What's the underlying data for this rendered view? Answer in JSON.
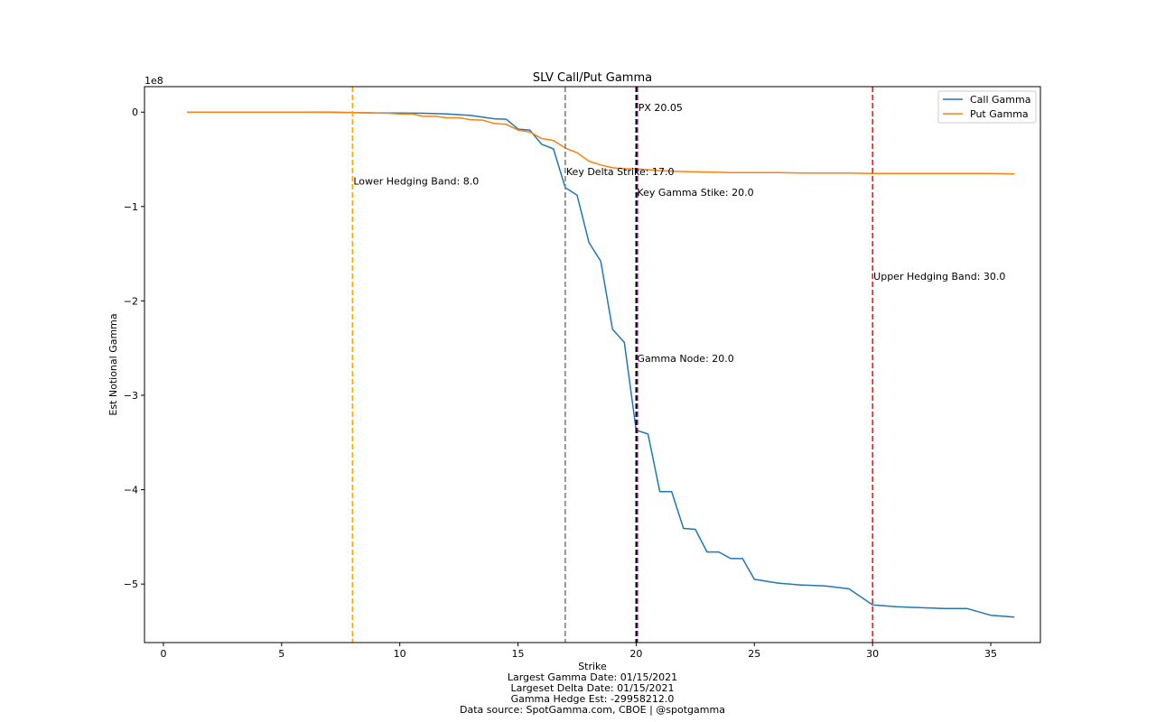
{
  "chart_data": {
    "type": "line",
    "title": "SLV Call/Put Gamma",
    "xlabel": "Strike",
    "ylabel": "Est Notional Gamma",
    "y_offset_label": "1e8",
    "xlim": [
      -0.8,
      37.1
    ],
    "ylim": [
      -5.62,
      0.27
    ],
    "x_ticks": [
      0,
      5,
      10,
      15,
      20,
      25,
      30,
      35
    ],
    "x_tick_labels": [
      "0",
      "5",
      "10",
      "15",
      "20",
      "25",
      "30",
      "35"
    ],
    "y_ticks": [
      0,
      -1,
      -2,
      -3,
      -4,
      -5
    ],
    "y_tick_labels": [
      "0",
      "−1",
      "−2",
      "−3",
      "−4",
      "−5"
    ],
    "grid": false,
    "legend_position": "top-right",
    "series": [
      {
        "name": "Call Gamma",
        "color": "#1f77b4",
        "points": [
          [
            1,
            0
          ],
          [
            2,
            0
          ],
          [
            3,
            0
          ],
          [
            4,
            0
          ],
          [
            5,
            0
          ],
          [
            6,
            0
          ],
          [
            7,
            0
          ],
          [
            8,
            -0.005
          ],
          [
            9,
            -0.008
          ],
          [
            10,
            -0.01
          ],
          [
            11,
            -0.012
          ],
          [
            12,
            -0.02
          ],
          [
            13,
            -0.035
          ],
          [
            14,
            -0.07
          ],
          [
            14.5,
            -0.075
          ],
          [
            15,
            -0.18
          ],
          [
            15.5,
            -0.19
          ],
          [
            16,
            -0.34
          ],
          [
            16.5,
            -0.39
          ],
          [
            17,
            -0.8
          ],
          [
            17.5,
            -0.88
          ],
          [
            18,
            -1.38
          ],
          [
            18.5,
            -1.58
          ],
          [
            19,
            -2.3
          ],
          [
            19.5,
            -2.44
          ],
          [
            20,
            -3.37
          ],
          [
            20.5,
            -3.41
          ],
          [
            21,
            -4.02
          ],
          [
            21.5,
            -4.02
          ],
          [
            22,
            -4.41
          ],
          [
            22.5,
            -4.42
          ],
          [
            23,
            -4.66
          ],
          [
            23.5,
            -4.66
          ],
          [
            24,
            -4.73
          ],
          [
            24.5,
            -4.73
          ],
          [
            25,
            -4.95
          ],
          [
            26,
            -4.99
          ],
          [
            27,
            -5.01
          ],
          [
            28,
            -5.02
          ],
          [
            29,
            -5.05
          ],
          [
            30,
            -5.22
          ],
          [
            31,
            -5.24
          ],
          [
            32,
            -5.25
          ],
          [
            33,
            -5.26
          ],
          [
            34,
            -5.26
          ],
          [
            35,
            -5.33
          ],
          [
            36,
            -5.35
          ]
        ]
      },
      {
        "name": "Put Gamma",
        "color": "#ff7f0e",
        "points": [
          [
            1,
            0
          ],
          [
            2,
            0
          ],
          [
            3,
            0
          ],
          [
            4,
            0
          ],
          [
            5,
            0
          ],
          [
            6,
            0
          ],
          [
            7,
            -0.002
          ],
          [
            8,
            -0.005
          ],
          [
            9,
            -0.01
          ],
          [
            9.5,
            -0.012
          ],
          [
            10,
            -0.02
          ],
          [
            10.5,
            -0.02
          ],
          [
            11,
            -0.045
          ],
          [
            11.5,
            -0.045
          ],
          [
            12,
            -0.06
          ],
          [
            12.5,
            -0.06
          ],
          [
            13,
            -0.08
          ],
          [
            13.5,
            -0.085
          ],
          [
            14,
            -0.12
          ],
          [
            14.5,
            -0.13
          ],
          [
            15,
            -0.19
          ],
          [
            15.5,
            -0.21
          ],
          [
            16,
            -0.28
          ],
          [
            16.5,
            -0.3
          ],
          [
            17,
            -0.38
          ],
          [
            17.5,
            -0.43
          ],
          [
            18,
            -0.52
          ],
          [
            18.5,
            -0.56
          ],
          [
            19,
            -0.59
          ],
          [
            19.5,
            -0.6
          ],
          [
            20,
            -0.6
          ],
          [
            20.5,
            -0.61
          ],
          [
            21,
            -0.62
          ],
          [
            22,
            -0.63
          ],
          [
            23,
            -0.635
          ],
          [
            24,
            -0.64
          ],
          [
            25,
            -0.64
          ],
          [
            26,
            -0.64
          ],
          [
            27,
            -0.645
          ],
          [
            28,
            -0.645
          ],
          [
            29,
            -0.645
          ],
          [
            30,
            -0.65
          ],
          [
            31,
            -0.65
          ],
          [
            32,
            -0.65
          ],
          [
            33,
            -0.65
          ],
          [
            34,
            -0.65
          ],
          [
            35,
            -0.65
          ],
          [
            36,
            -0.655
          ]
        ]
      }
    ],
    "vlines": [
      {
        "x": 8.0,
        "color": "#ffa500",
        "label": "Lower Hedging Band: 8.0",
        "label_y": -0.73
      },
      {
        "x": 17.0,
        "color": "#808080",
        "label": "Key Delta Strike: 17.0",
        "label_y": -0.63
      },
      {
        "x": 20.0,
        "color": "#0000cd",
        "label": "Key Gamma Stike: 20.0",
        "label_y": -0.85
      },
      {
        "x": 20.0,
        "color": "#000000",
        "label": "Gamma Node: 20.0",
        "label_y": -2.61
      },
      {
        "x": 20.05,
        "color": "#800080",
        "label": "PX 20.05",
        "label_y": 0.05
      },
      {
        "x": 30.0,
        "color": "#d62728",
        "label": "Upper Hedging Band: 30.0",
        "label_y": -1.74
      }
    ]
  },
  "footer": {
    "strike_label": "Strike",
    "largest_gamma_date": "Largest Gamma Date: 01/15/2021",
    "largest_delta_date": "Largeset Delta Date: 01/15/2021",
    "gamma_hedge_est": "Gamma Hedge Est: -29958212.0",
    "data_source": "Data source: SpotGamma.com, CBOE | @spotgamma"
  }
}
